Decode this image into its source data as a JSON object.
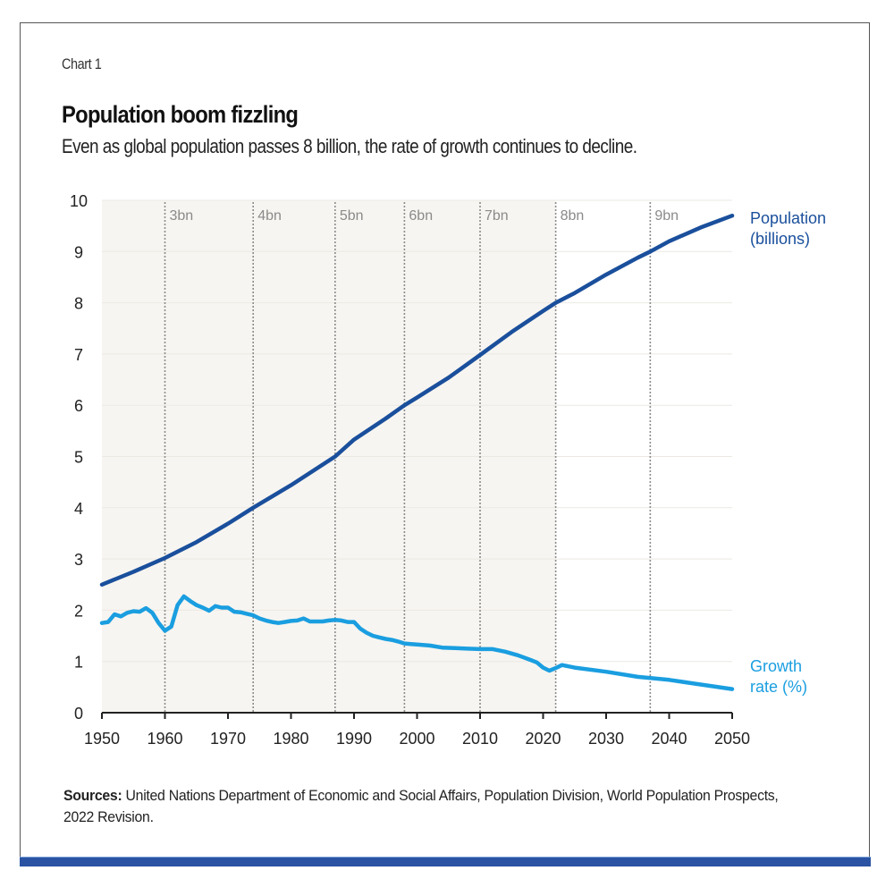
{
  "header": {
    "chart_number": "Chart 1",
    "title": "Population boom fizzling",
    "subtitle": "Even as global population passes 8 billion, the rate of growth continues to decline."
  },
  "footer": {
    "sources_label": "Sources:",
    "sources_text": " United Nations Department of Economic and Social Affairs, Population Division, World Population Prospects, 2022 Revision."
  },
  "colors": {
    "population": "#1a4f9c",
    "growth": "#1a9ee0",
    "shade": "#f7f5f1",
    "frame_bar": "#2a54a3"
  },
  "chart_data": {
    "type": "line",
    "title": "Population boom fizzling",
    "subtitle": "Even as global population passes 8 billion, the rate of growth continues to decline.",
    "xlabel": "",
    "ylabel": "",
    "xlim": [
      1950,
      2050
    ],
    "ylim": [
      0,
      10
    ],
    "x_ticks": [
      1950,
      1960,
      1970,
      1980,
      1990,
      2000,
      2010,
      2020,
      2030,
      2040,
      2050
    ],
    "y_ticks": [
      0,
      1,
      2,
      3,
      4,
      5,
      6,
      7,
      8,
      9,
      10
    ],
    "grid": "horizontal",
    "shaded_region": {
      "from": 1950,
      "to": 2022,
      "meaning": "historical"
    },
    "milestones": [
      {
        "year": 1960,
        "label": "3bn"
      },
      {
        "year": 1974,
        "label": "4bn"
      },
      {
        "year": 1987,
        "label": "5bn"
      },
      {
        "year": 1998,
        "label": "6bn"
      },
      {
        "year": 2010,
        "label": "7bn"
      },
      {
        "year": 2022,
        "label": "8bn"
      },
      {
        "year": 2037,
        "label": "9bn"
      }
    ],
    "legend": "inline-right",
    "series": [
      {
        "name": "Population\n(billions)",
        "label_lines": [
          "Population",
          "(billions)"
        ],
        "x": [
          1950,
          1955,
          1960,
          1965,
          1970,
          1974,
          1980,
          1987,
          1990,
          1995,
          1998,
          2000,
          2005,
          2010,
          2015,
          2020,
          2022,
          2025,
          2030,
          2035,
          2037,
          2040,
          2045,
          2050
        ],
        "values": [
          2.5,
          2.75,
          3.02,
          3.33,
          3.69,
          4.0,
          4.44,
          5.0,
          5.33,
          5.74,
          6.0,
          6.15,
          6.54,
          6.98,
          7.43,
          7.84,
          8.0,
          8.19,
          8.55,
          8.88,
          9.0,
          9.2,
          9.47,
          9.7
        ]
      },
      {
        "name": "Growth\nrate (%)",
        "label_lines": [
          "Growth",
          "rate (%)"
        ],
        "x": [
          1950,
          1951,
          1952,
          1953,
          1954,
          1955,
          1956,
          1957,
          1958,
          1959,
          1960,
          1961,
          1962,
          1963,
          1964,
          1965,
          1966,
          1967,
          1968,
          1969,
          1970,
          1971,
          1972,
          1973,
          1974,
          1975,
          1976,
          1977,
          1978,
          1979,
          1980,
          1981,
          1982,
          1983,
          1984,
          1985,
          1986,
          1987,
          1988,
          1989,
          1990,
          1991,
          1992,
          1993,
          1994,
          1995,
          1996,
          1997,
          1998,
          1999,
          2000,
          2002,
          2004,
          2006,
          2008,
          2010,
          2012,
          2014,
          2016,
          2018,
          2019,
          2020,
          2021,
          2022,
          2023,
          2025,
          2030,
          2035,
          2040,
          2045,
          2050
        ],
        "values": [
          1.75,
          1.77,
          1.92,
          1.88,
          1.95,
          1.98,
          1.97,
          2.04,
          1.95,
          1.75,
          1.6,
          1.68,
          2.1,
          2.27,
          2.18,
          2.1,
          2.05,
          1.99,
          2.08,
          2.05,
          2.05,
          1.97,
          1.96,
          1.93,
          1.9,
          1.84,
          1.8,
          1.77,
          1.75,
          1.77,
          1.79,
          1.8,
          1.84,
          1.78,
          1.78,
          1.78,
          1.8,
          1.81,
          1.8,
          1.77,
          1.77,
          1.64,
          1.56,
          1.5,
          1.47,
          1.44,
          1.42,
          1.39,
          1.35,
          1.34,
          1.33,
          1.31,
          1.27,
          1.26,
          1.25,
          1.24,
          1.24,
          1.19,
          1.12,
          1.03,
          0.98,
          0.88,
          0.82,
          0.87,
          0.93,
          0.88,
          0.8,
          0.7,
          0.64,
          0.55,
          0.46
        ]
      }
    ]
  }
}
